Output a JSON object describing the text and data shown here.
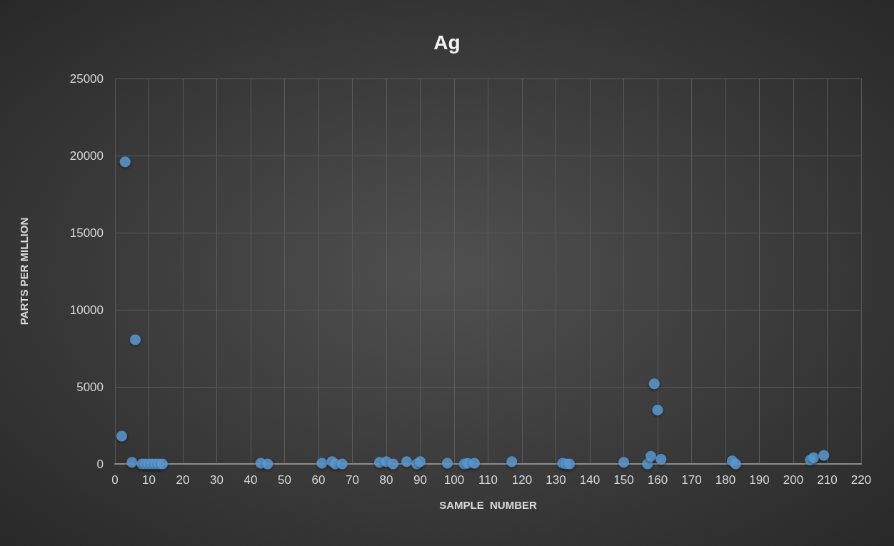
{
  "chart_data": {
    "type": "scatter",
    "title": "Ag",
    "xlabel": "SAMPLE  NUMBER",
    "ylabel": "PARTS PER MILLION",
    "x": [
      2,
      3,
      5,
      6,
      8,
      9,
      10,
      11,
      12,
      13,
      14,
      43,
      45,
      61,
      64,
      65,
      67,
      78,
      80,
      82,
      86,
      89,
      90,
      98,
      103,
      104,
      106,
      117,
      132,
      133,
      134,
      150,
      157,
      158,
      159,
      160,
      161,
      182,
      183,
      205,
      206,
      209
    ],
    "series": [
      {
        "color": "#5b9bd5",
        "values": [
          1800,
          19600,
          100,
          8050,
          0,
          0,
          0,
          0,
          0,
          0,
          0,
          50,
          0,
          50,
          150,
          0,
          0,
          100,
          150,
          0,
          150,
          0,
          150,
          50,
          0,
          50,
          50,
          150,
          50,
          0,
          0,
          100,
          0,
          500,
          5200,
          3500,
          300,
          200,
          0,
          250,
          400,
          550
        ]
      }
    ],
    "xlim": [
      0,
      220
    ],
    "xticks": [
      0,
      10,
      20,
      30,
      40,
      50,
      60,
      70,
      80,
      90,
      100,
      110,
      120,
      130,
      140,
      150,
      160,
      170,
      180,
      190,
      200,
      210,
      220
    ],
    "ylim": [
      0,
      25000
    ],
    "yticks": [
      0,
      5000,
      10000,
      15000,
      20000,
      25000
    ],
    "grid": true,
    "marker": "circle"
  }
}
